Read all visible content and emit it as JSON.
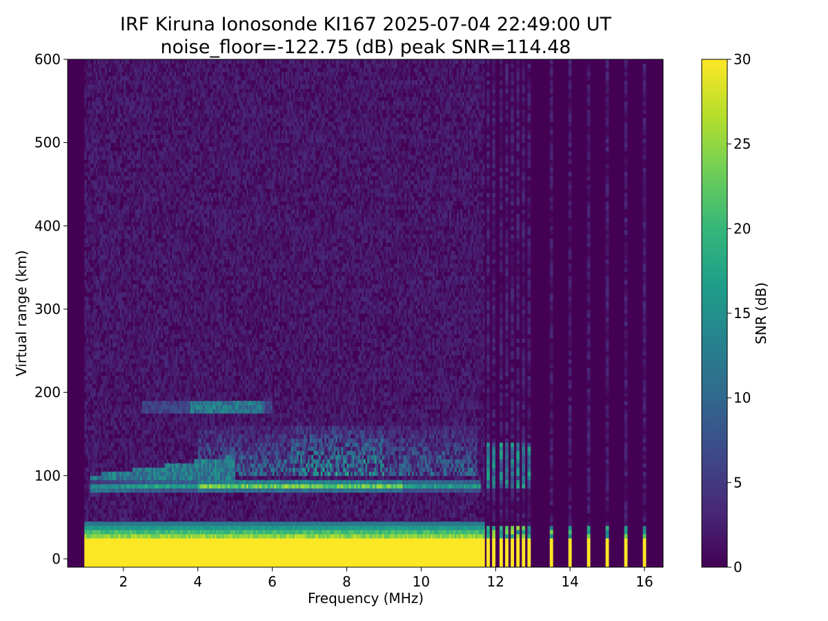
{
  "chart_data": {
    "type": "heatmap",
    "title": "IRF Kiruna Ionosonde KI167 2025-07-04 22:49:00  UT",
    "subtitle": "noise_floor=-122.75 (dB) peak SNR=114.48",
    "xlabel": "Frequency (MHz)",
    "ylabel": "Virtual range (km)",
    "xlim": [
      0.5,
      16.5
    ],
    "ylim": [
      -10,
      600
    ],
    "xticks": [
      2,
      4,
      6,
      8,
      10,
      12,
      14,
      16
    ],
    "yticks": [
      0,
      100,
      200,
      300,
      400,
      500,
      600
    ],
    "colorbar": {
      "label": "SNR (dB)",
      "range": [
        0,
        30
      ],
      "ticks": [
        0,
        5,
        10,
        15,
        20,
        25,
        30
      ],
      "colormap": "viridis"
    },
    "sweep_band_mhz": [
      0.95,
      11.7
    ],
    "discrete_frequencies_mhz": [
      11.8,
      11.95,
      12.15,
      12.3,
      12.45,
      12.6,
      12.75,
      12.9,
      13.5,
      14.0,
      14.5,
      15.0,
      15.5,
      16.0
    ],
    "features": [
      {
        "name": "ground clutter",
        "range_km": [
          -10,
          45
        ],
        "snr_db": 30
      },
      {
        "name": "E-layer trace",
        "x_mhz": [
          1.1,
          11.6
        ],
        "range_km": [
          82,
          96
        ],
        "snr_db": 28
      },
      {
        "name": "F-layer scatter",
        "x_mhz": [
          4,
          11.5
        ],
        "range_km": [
          100,
          160
        ],
        "snr_db": 20
      },
      {
        "name": "upper trace",
        "x_mhz": [
          2.5,
          6
        ],
        "range_km": [
          175,
          190
        ],
        "snr_db": 15
      }
    ]
  },
  "colors": {
    "background_plot": "#440154",
    "colormap_stops": [
      "#440154",
      "#482878",
      "#3e4989",
      "#31688e",
      "#26828e",
      "#1f9e89",
      "#35b779",
      "#6ece58",
      "#b5de2b",
      "#fde725"
    ]
  }
}
